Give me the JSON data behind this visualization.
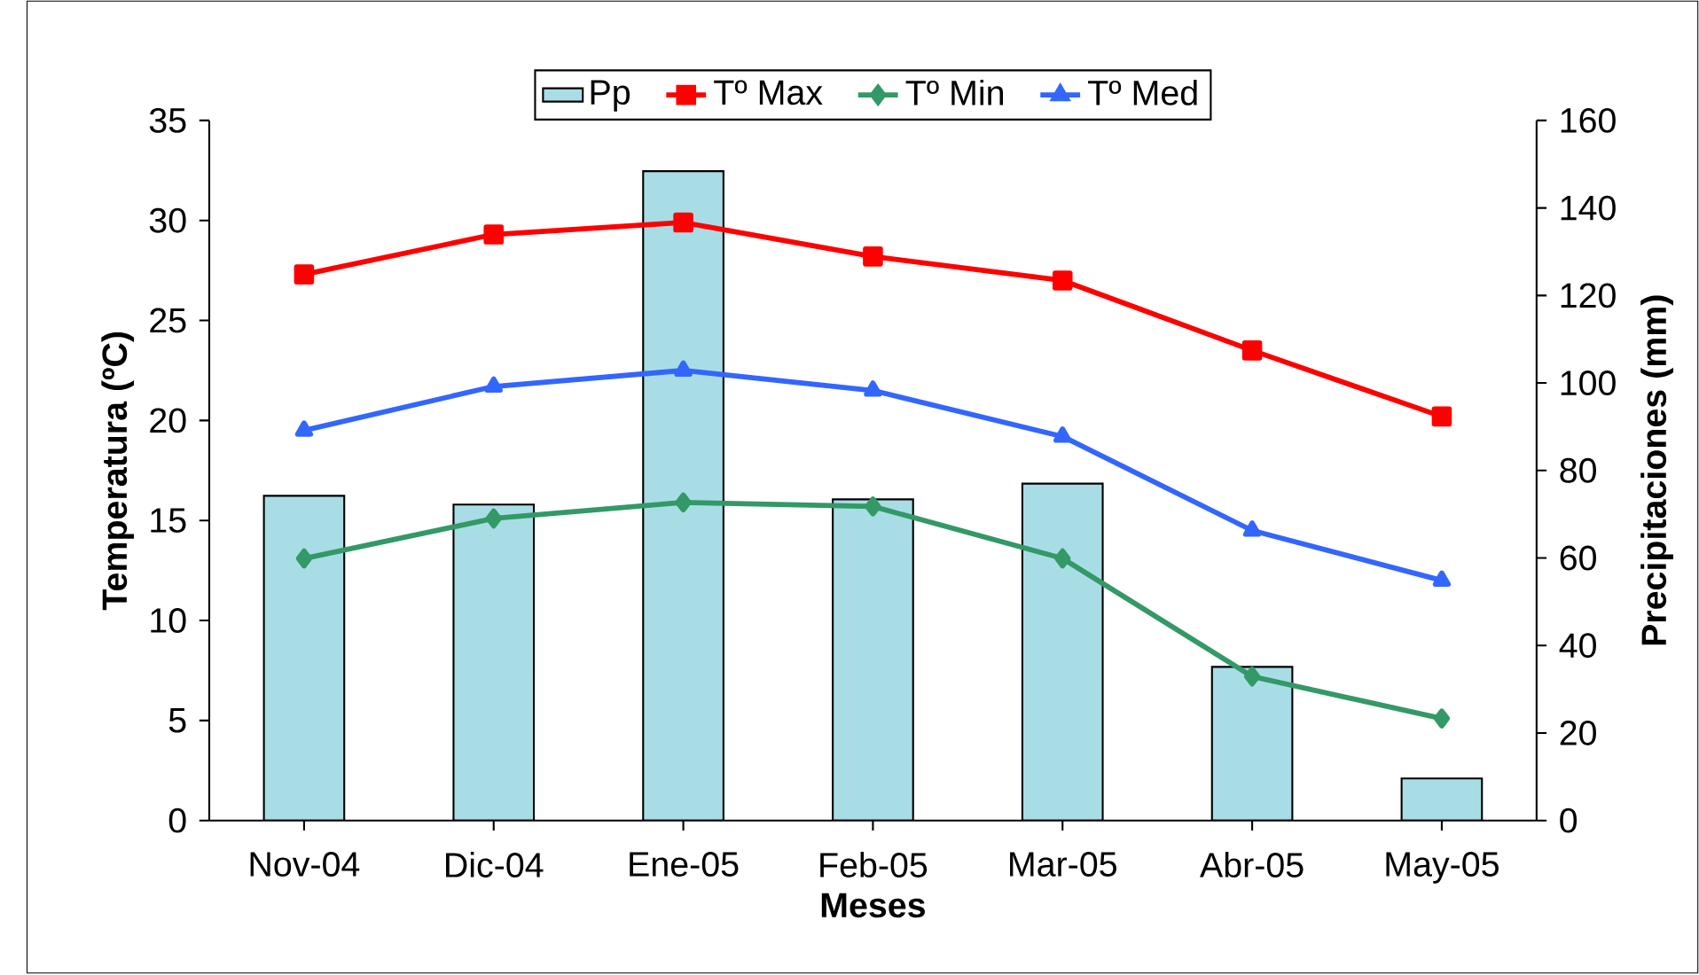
{
  "chart_data": {
    "type": "bar",
    "xlabel": "Meses",
    "ylabel": "Temperatura (ºC)",
    "y2label": "Precipitaciones (mm)",
    "categories": [
      "Nov-04",
      "Dic-04",
      "Ene-05",
      "Feb-05",
      "Mar-05",
      "Abr-05",
      "May-05"
    ],
    "series": [
      {
        "name": "Pp",
        "axis": "y2",
        "color": "#a8dde6",
        "values": [
          74.2,
          72.2,
          148.4,
          73.4,
          77,
          35.1,
          9.6
        ]
      },
      {
        "name": "Tº Max",
        "type": "line",
        "marker": "square",
        "color": "#ff0000",
        "values": [
          27.3,
          29.3,
          29.9,
          28.2,
          27.0,
          23.5,
          20.2
        ]
      },
      {
        "name": "Tº Min",
        "type": "line",
        "marker": "diamond",
        "color": "#339966",
        "values": [
          13.1,
          15.1,
          15.9,
          15.7,
          13.1,
          7.2,
          5.1
        ]
      },
      {
        "name": "Tº Med",
        "type": "line",
        "marker": "triangle",
        "color": "#3366ff",
        "values": [
          19.5,
          21.7,
          22.5,
          21.5,
          19.2,
          14.5,
          12.0
        ]
      }
    ],
    "ylim": [
      0,
      35
    ],
    "yticks": [
      0,
      5,
      10,
      15,
      20,
      25,
      30,
      35
    ],
    "y2lim": [
      0,
      160
    ],
    "y2ticks": [
      0,
      20,
      40,
      60,
      80,
      100,
      120,
      140,
      160
    ],
    "legend": "top",
    "grid": false
  }
}
